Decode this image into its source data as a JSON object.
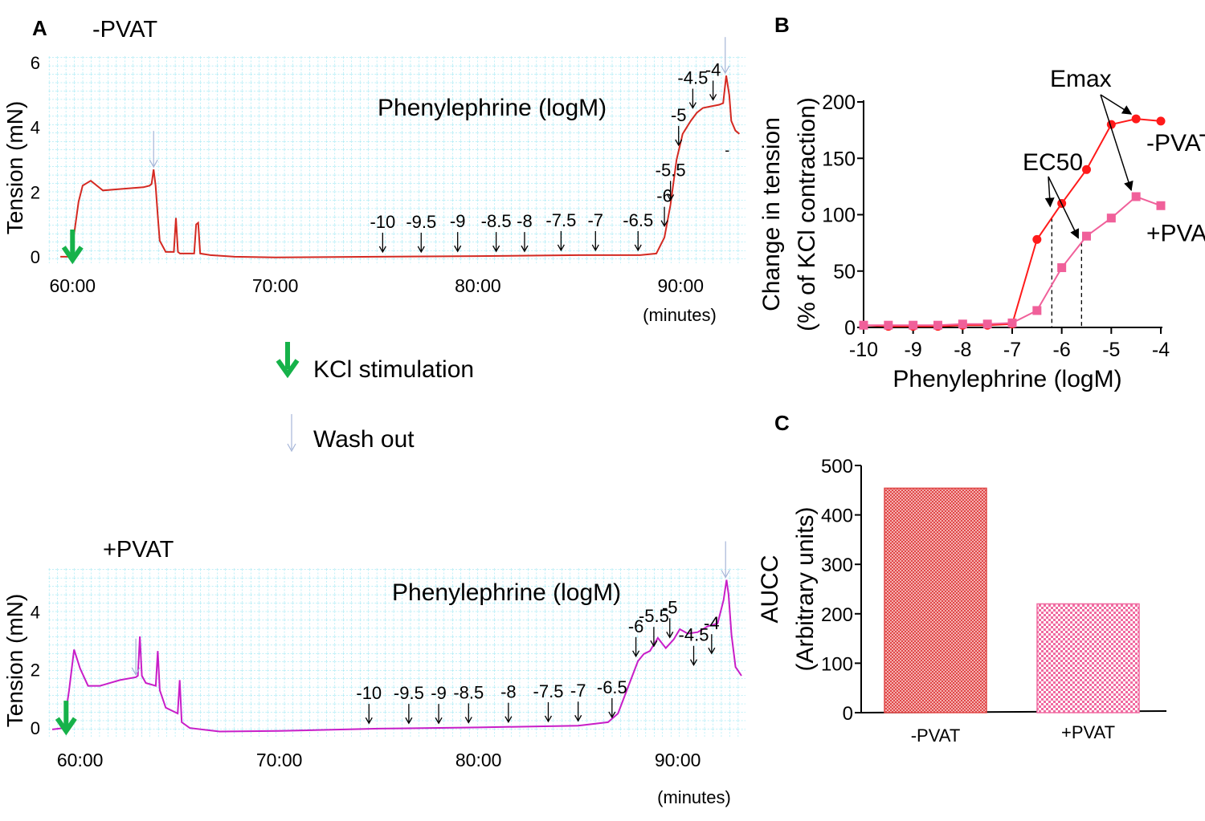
{
  "colors": {
    "minus_pvat": "#d42a22",
    "plus_pvat": "#e8418c",
    "plus_pvat_trace": "#c81ec8",
    "curve_minus": "#ff1a1a",
    "curve_plus": "#f0609a",
    "bar_minus": "#e04848",
    "bar_plus": "#f06aa0",
    "grid": "#7fe0f0",
    "kcl_arrow": "#16b24a",
    "wash_arrow": "#a6b6d8"
  },
  "legend": {
    "kcl_label": "KCl stimulation",
    "wash_label": "Wash out"
  },
  "chart_data": [
    {
      "panel": "A",
      "title": "-PVAT",
      "type": "line",
      "annotation": "Phenylephrine (logM)",
      "xlabel": "(minutes)",
      "ylabel": "Tension (mN)",
      "xlim": [
        58.8,
        93.2
      ],
      "ylim": [
        -0.2,
        6.2
      ],
      "xticks": [
        60,
        70,
        80,
        90
      ],
      "xtick_labels": [
        "60:00",
        "70:00",
        "80:00",
        "90:00"
      ],
      "yticks": [
        0,
        2,
        4,
        6
      ],
      "ytick_labels": [
        "0",
        "2",
        "4",
        "6"
      ],
      "trace": {
        "x": [
          59.4,
          59.8,
          59.9,
          60.1,
          60.3,
          60.5,
          60.9,
          61.5,
          62.5,
          63.5,
          63.8,
          63.9,
          64.0,
          64.1,
          64.2,
          64.3,
          64.6,
          65.0,
          65.1,
          65.2,
          65.3,
          65.6,
          66.0,
          66.1,
          66.2,
          66.3,
          66.8,
          68.0,
          70.0,
          75.0,
          80.0,
          85.0,
          88.0,
          88.8,
          89.2,
          89.5,
          89.8,
          90.1,
          90.5,
          90.8,
          91.1,
          91.5,
          91.9,
          92.1,
          92.25,
          92.4,
          92.5,
          92.7,
          92.9
        ],
        "y": [
          0.0,
          0.0,
          0.05,
          0.8,
          1.7,
          2.2,
          2.35,
          2.05,
          2.1,
          2.15,
          2.2,
          2.25,
          2.7,
          2.2,
          1.3,
          0.5,
          0.15,
          0.15,
          1.2,
          0.15,
          0.1,
          0.1,
          0.1,
          1.0,
          1.05,
          0.1,
          0.05,
          0.0,
          -0.02,
          0.0,
          0.02,
          0.05,
          0.05,
          0.1,
          0.6,
          1.6,
          3.0,
          3.8,
          4.2,
          4.45,
          4.6,
          4.65,
          4.7,
          4.75,
          5.6,
          5.0,
          4.2,
          3.9,
          3.8
        ]
      },
      "kcl_markers": [
        60.0
      ],
      "washout_markers": [
        64.0,
        92.2
      ],
      "dose_markers": [
        {
          "label": "-10",
          "x": 75.3,
          "y": 0.0
        },
        {
          "label": "-9.5",
          "x": 77.2,
          "y": 0.0
        },
        {
          "label": "-9",
          "x": 79.0,
          "y": 0.02
        },
        {
          "label": "-8.5",
          "x": 80.9,
          "y": 0.02
        },
        {
          "label": "-8",
          "x": 82.3,
          "y": 0.02
        },
        {
          "label": "-7.5",
          "x": 84.1,
          "y": 0.05
        },
        {
          "label": "-7",
          "x": 85.8,
          "y": 0.05
        },
        {
          "label": "-6.5",
          "x": 87.9,
          "y": 0.05
        },
        {
          "label": "-6",
          "x": 89.2,
          "y": 0.8
        },
        {
          "label": "-5.5",
          "x": 89.5,
          "y": 1.6
        },
        {
          "label": "-5",
          "x": 89.9,
          "y": 3.3
        },
        {
          "label": "-4.5",
          "x": 90.6,
          "y": 4.45
        },
        {
          "label": "-4",
          "x": 91.6,
          "y": 4.7
        }
      ],
      "end_mark": "-"
    },
    {
      "panel": "A",
      "title": "+PVAT",
      "type": "line",
      "annotation": "Phenylephrine (logM)",
      "xlabel": "(minutes)",
      "ylabel": "Tension (mN)",
      "xlim": [
        58.4,
        93.4
      ],
      "ylim": [
        -0.3,
        5.5
      ],
      "xticks": [
        60,
        70,
        80,
        90
      ],
      "xtick_labels": [
        "60:00",
        "70:00",
        "80:00",
        "90:00"
      ],
      "yticks": [
        0,
        2,
        4
      ],
      "ytick_labels": [
        "0",
        "2",
        "4"
      ],
      "trace": {
        "x": [
          58.6,
          59.2,
          59.3,
          59.45,
          59.7,
          60.0,
          60.4,
          61.0,
          62.0,
          62.8,
          62.9,
          63.0,
          63.1,
          63.3,
          63.8,
          63.9,
          64.0,
          64.3,
          64.9,
          65.0,
          65.1,
          65.5,
          67.0,
          70.0,
          75.0,
          80.0,
          85.0,
          86.5,
          87.0,
          87.5,
          88.0,
          88.3,
          88.6,
          89.0,
          89.4,
          89.8,
          90.1,
          90.5,
          91.0,
          91.5,
          92.0,
          92.3,
          92.45,
          92.55,
          92.7,
          92.9,
          93.2
        ],
        "y": [
          -0.05,
          0.0,
          0.6,
          1.3,
          2.7,
          2.05,
          1.45,
          1.45,
          1.65,
          1.75,
          1.8,
          3.15,
          1.8,
          1.55,
          1.45,
          2.65,
          1.3,
          0.7,
          0.5,
          1.65,
          0.2,
          0.0,
          -0.12,
          -0.1,
          -0.02,
          0.02,
          0.08,
          0.2,
          0.5,
          1.4,
          2.3,
          2.55,
          2.65,
          3.1,
          2.75,
          3.05,
          3.4,
          3.25,
          3.3,
          3.5,
          3.6,
          4.4,
          5.1,
          4.6,
          3.2,
          2.1,
          1.8
        ]
      },
      "kcl_markers": [
        59.3
      ],
      "washout_markers": [
        62.8,
        92.4
      ],
      "dose_markers": [
        {
          "label": "-10",
          "x": 74.5,
          "y": 0.0
        },
        {
          "label": "-9.5",
          "x": 76.5,
          "y": 0.0
        },
        {
          "label": "-9",
          "x": 78.0,
          "y": 0.0
        },
        {
          "label": "-8.5",
          "x": 79.5,
          "y": 0.02
        },
        {
          "label": "-8",
          "x": 81.5,
          "y": 0.04
        },
        {
          "label": "-7.5",
          "x": 83.5,
          "y": 0.06
        },
        {
          "label": "-7",
          "x": 85.0,
          "y": 0.08
        },
        {
          "label": "-6.5",
          "x": 86.7,
          "y": 0.2
        },
        {
          "label": "-6",
          "x": 87.9,
          "y": 2.3
        },
        {
          "label": "-5.5",
          "x": 88.8,
          "y": 2.65
        },
        {
          "label": "-5",
          "x": 89.6,
          "y": 2.95
        },
        {
          "label": "-4.5",
          "x": 90.8,
          "y": 2.0
        },
        {
          "label": "-4",
          "x": 91.7,
          "y": 2.4
        }
      ]
    },
    {
      "panel": "B",
      "type": "line",
      "xlabel": "Phenylephrine (logM)",
      "ylabel_line1": "Change in tension",
      "ylabel_line2": "(% of KCl contraction)",
      "xlim": [
        -10,
        -4
      ],
      "ylim": [
        0,
        200
      ],
      "xticks": [
        -10,
        -9,
        -8,
        -7,
        -6,
        -5,
        -4
      ],
      "xtick_labels": [
        "-10",
        "-9",
        "-8",
        "-7",
        "-6",
        "-5",
        "-4"
      ],
      "yticks": [
        0,
        50,
        100,
        150,
        200
      ],
      "ytick_labels": [
        "0",
        "50",
        "100",
        "150",
        "200"
      ],
      "series": [
        {
          "name": "-PVAT",
          "marker": "circle",
          "x": [
            -10,
            -9.5,
            -9,
            -8.5,
            -8,
            -7.5,
            -7,
            -6.5,
            -6,
            -5.5,
            -5,
            -4.5,
            -4
          ],
          "y": [
            2,
            1,
            1,
            1,
            2,
            2,
            3,
            78,
            110,
            140,
            180,
            185,
            183
          ]
        },
        {
          "name": "+PVAT",
          "marker": "square",
          "x": [
            -10,
            -9.5,
            -9,
            -8.5,
            -8,
            -7.5,
            -7,
            -6.5,
            -6,
            -5.5,
            -5,
            -4.5,
            -4
          ],
          "y": [
            2,
            2,
            2,
            2,
            3,
            3,
            4,
            15,
            53,
            81,
            97,
            116,
            108
          ]
        }
      ],
      "annotations": {
        "emax": "Emax",
        "ec50": "EC50"
      },
      "ec50_x": [
        -6.2,
        -5.6
      ],
      "emax_x": [
        -4.5,
        -4.5
      ]
    },
    {
      "panel": "C",
      "type": "bar",
      "categories": [
        "-PVAT",
        "+PVAT"
      ],
      "values": [
        454,
        220
      ],
      "ylabel_line1": "AUCC",
      "ylabel_line2": "(Arbitrary units)",
      "ylim": [
        0,
        500
      ],
      "yticks": [
        0,
        100,
        200,
        300,
        400,
        500
      ],
      "ytick_labels": [
        "0",
        "100",
        "200",
        "300",
        "400",
        "500"
      ]
    }
  ],
  "panel_labels": {
    "a": "A",
    "b": "B",
    "c": "C"
  }
}
